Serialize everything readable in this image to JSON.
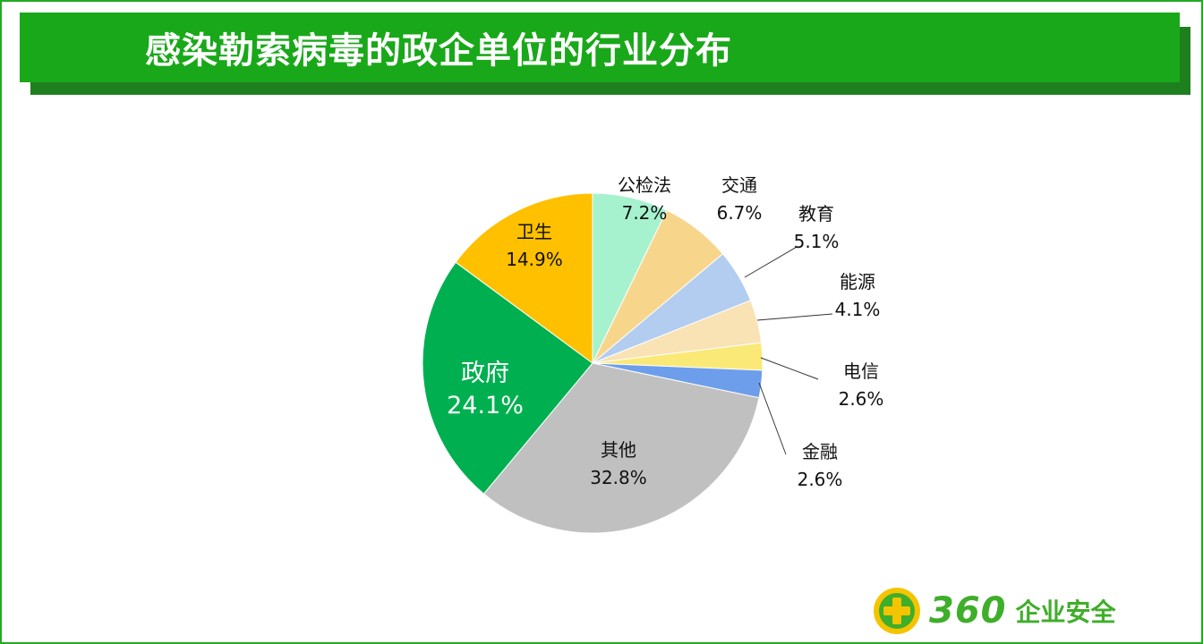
{
  "header": {
    "title": "感染勒索病毒的政企单位的行业分布"
  },
  "brand": {
    "number": "360",
    "name": "企业安全",
    "color": "#3fae2a"
  },
  "chart_data": {
    "type": "pie",
    "title": "感染勒索病毒的政企单位的行业分布",
    "unit": "%",
    "slices": [
      {
        "name": "公检法",
        "value": 7.2,
        "label": "7.2%",
        "color": "#a6f2cf"
      },
      {
        "name": "交通",
        "value": 6.7,
        "label": "6.7%",
        "color": "#f7d68c"
      },
      {
        "name": "教育",
        "value": 5.1,
        "label": "5.1%",
        "color": "#b3cdf0"
      },
      {
        "name": "能源",
        "value": 4.1,
        "label": "4.1%",
        "color": "#f9e2b4"
      },
      {
        "name": "电信",
        "value": 2.6,
        "label": "2.6%",
        "color": "#fbe977"
      },
      {
        "name": "金融",
        "value": 2.6,
        "label": "2.6%",
        "color": "#6d9eeb"
      },
      {
        "name": "其他",
        "value": 32.8,
        "label": "32.8%",
        "color": "#c0c0c0"
      },
      {
        "name": "政府",
        "value": 24.1,
        "label": "24.1%",
        "color": "#00b050"
      },
      {
        "name": "卫生",
        "value": 14.9,
        "label": "14.9%",
        "color": "#ffc000"
      }
    ]
  }
}
